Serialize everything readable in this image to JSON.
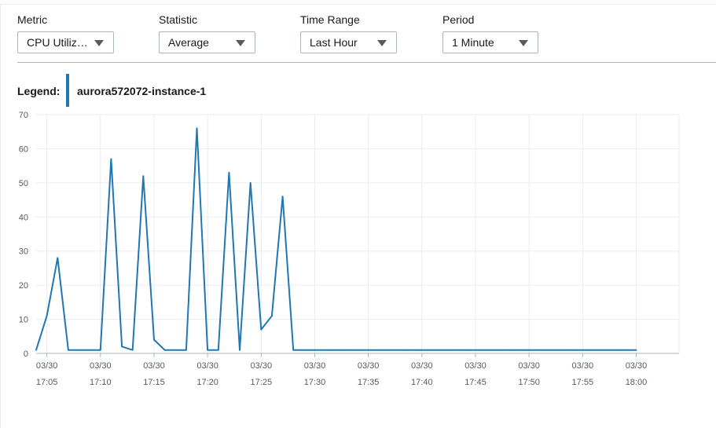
{
  "controls": [
    {
      "label": "Metric",
      "value": "CPU Utiliz…"
    },
    {
      "label": "Statistic",
      "value": "Average"
    },
    {
      "label": "Time Range",
      "value": "Last Hour"
    },
    {
      "label": "Period",
      "value": "1 Minute"
    }
  ],
  "legend": {
    "title": "Legend:",
    "items": [
      {
        "name": "aurora572072-instance-1",
        "color": "#1f77b4"
      }
    ]
  },
  "chart_data": {
    "type": "line",
    "title": "",
    "xlabel": "",
    "ylabel": "",
    "ylim": [
      0,
      70
    ],
    "yticks": [
      0,
      10,
      20,
      30,
      40,
      50,
      60,
      70
    ],
    "xlim": [
      "17:04",
      "18:04"
    ],
    "xticks": [
      {
        "time": "17:05",
        "date": "03/30"
      },
      {
        "time": "17:10",
        "date": "03/30"
      },
      {
        "time": "17:15",
        "date": "03/30"
      },
      {
        "time": "17:20",
        "date": "03/30"
      },
      {
        "time": "17:25",
        "date": "03/30"
      },
      {
        "time": "17:30",
        "date": "03/30"
      },
      {
        "time": "17:35",
        "date": "03/30"
      },
      {
        "time": "17:40",
        "date": "03/30"
      },
      {
        "time": "17:45",
        "date": "03/30"
      },
      {
        "time": "17:50",
        "date": "03/30"
      },
      {
        "time": "17:55",
        "date": "03/30"
      },
      {
        "time": "18:00",
        "date": "03/30"
      }
    ],
    "grid": true,
    "series": [
      {
        "name": "aurora572072-instance-1",
        "color": "#1f77b4",
        "x": [
          "17:04",
          "17:05",
          "17:06",
          "17:07",
          "17:08",
          "17:09",
          "17:10",
          "17:11",
          "17:12",
          "17:13",
          "17:14",
          "17:15",
          "17:16",
          "17:17",
          "17:18",
          "17:19",
          "17:20",
          "17:21",
          "17:22",
          "17:23",
          "17:24",
          "17:25",
          "17:26",
          "17:27",
          "17:28",
          "17:29",
          "17:30",
          "17:31",
          "17:32",
          "17:33",
          "17:34",
          "17:35",
          "17:36",
          "17:37",
          "17:38",
          "17:39",
          "17:40",
          "17:41",
          "17:42",
          "17:43",
          "17:44",
          "17:45",
          "17:46",
          "17:47",
          "17:48",
          "17:49",
          "17:50",
          "17:51",
          "17:52",
          "17:53",
          "17:54",
          "17:55",
          "17:56",
          "17:57",
          "17:58",
          "17:59",
          "18:00"
        ],
        "values": [
          1,
          11,
          28,
          1,
          1,
          1,
          1,
          57,
          2,
          1,
          52,
          4,
          1,
          1,
          1,
          66,
          1,
          1,
          53,
          1,
          50,
          7,
          11,
          46,
          1,
          1,
          1,
          1,
          1,
          1,
          1,
          1,
          1,
          1,
          1,
          1,
          1,
          1,
          1,
          1,
          1,
          1,
          1,
          1,
          1,
          1,
          1,
          1,
          1,
          1,
          1,
          1,
          1,
          1,
          1,
          1,
          1
        ]
      }
    ]
  }
}
